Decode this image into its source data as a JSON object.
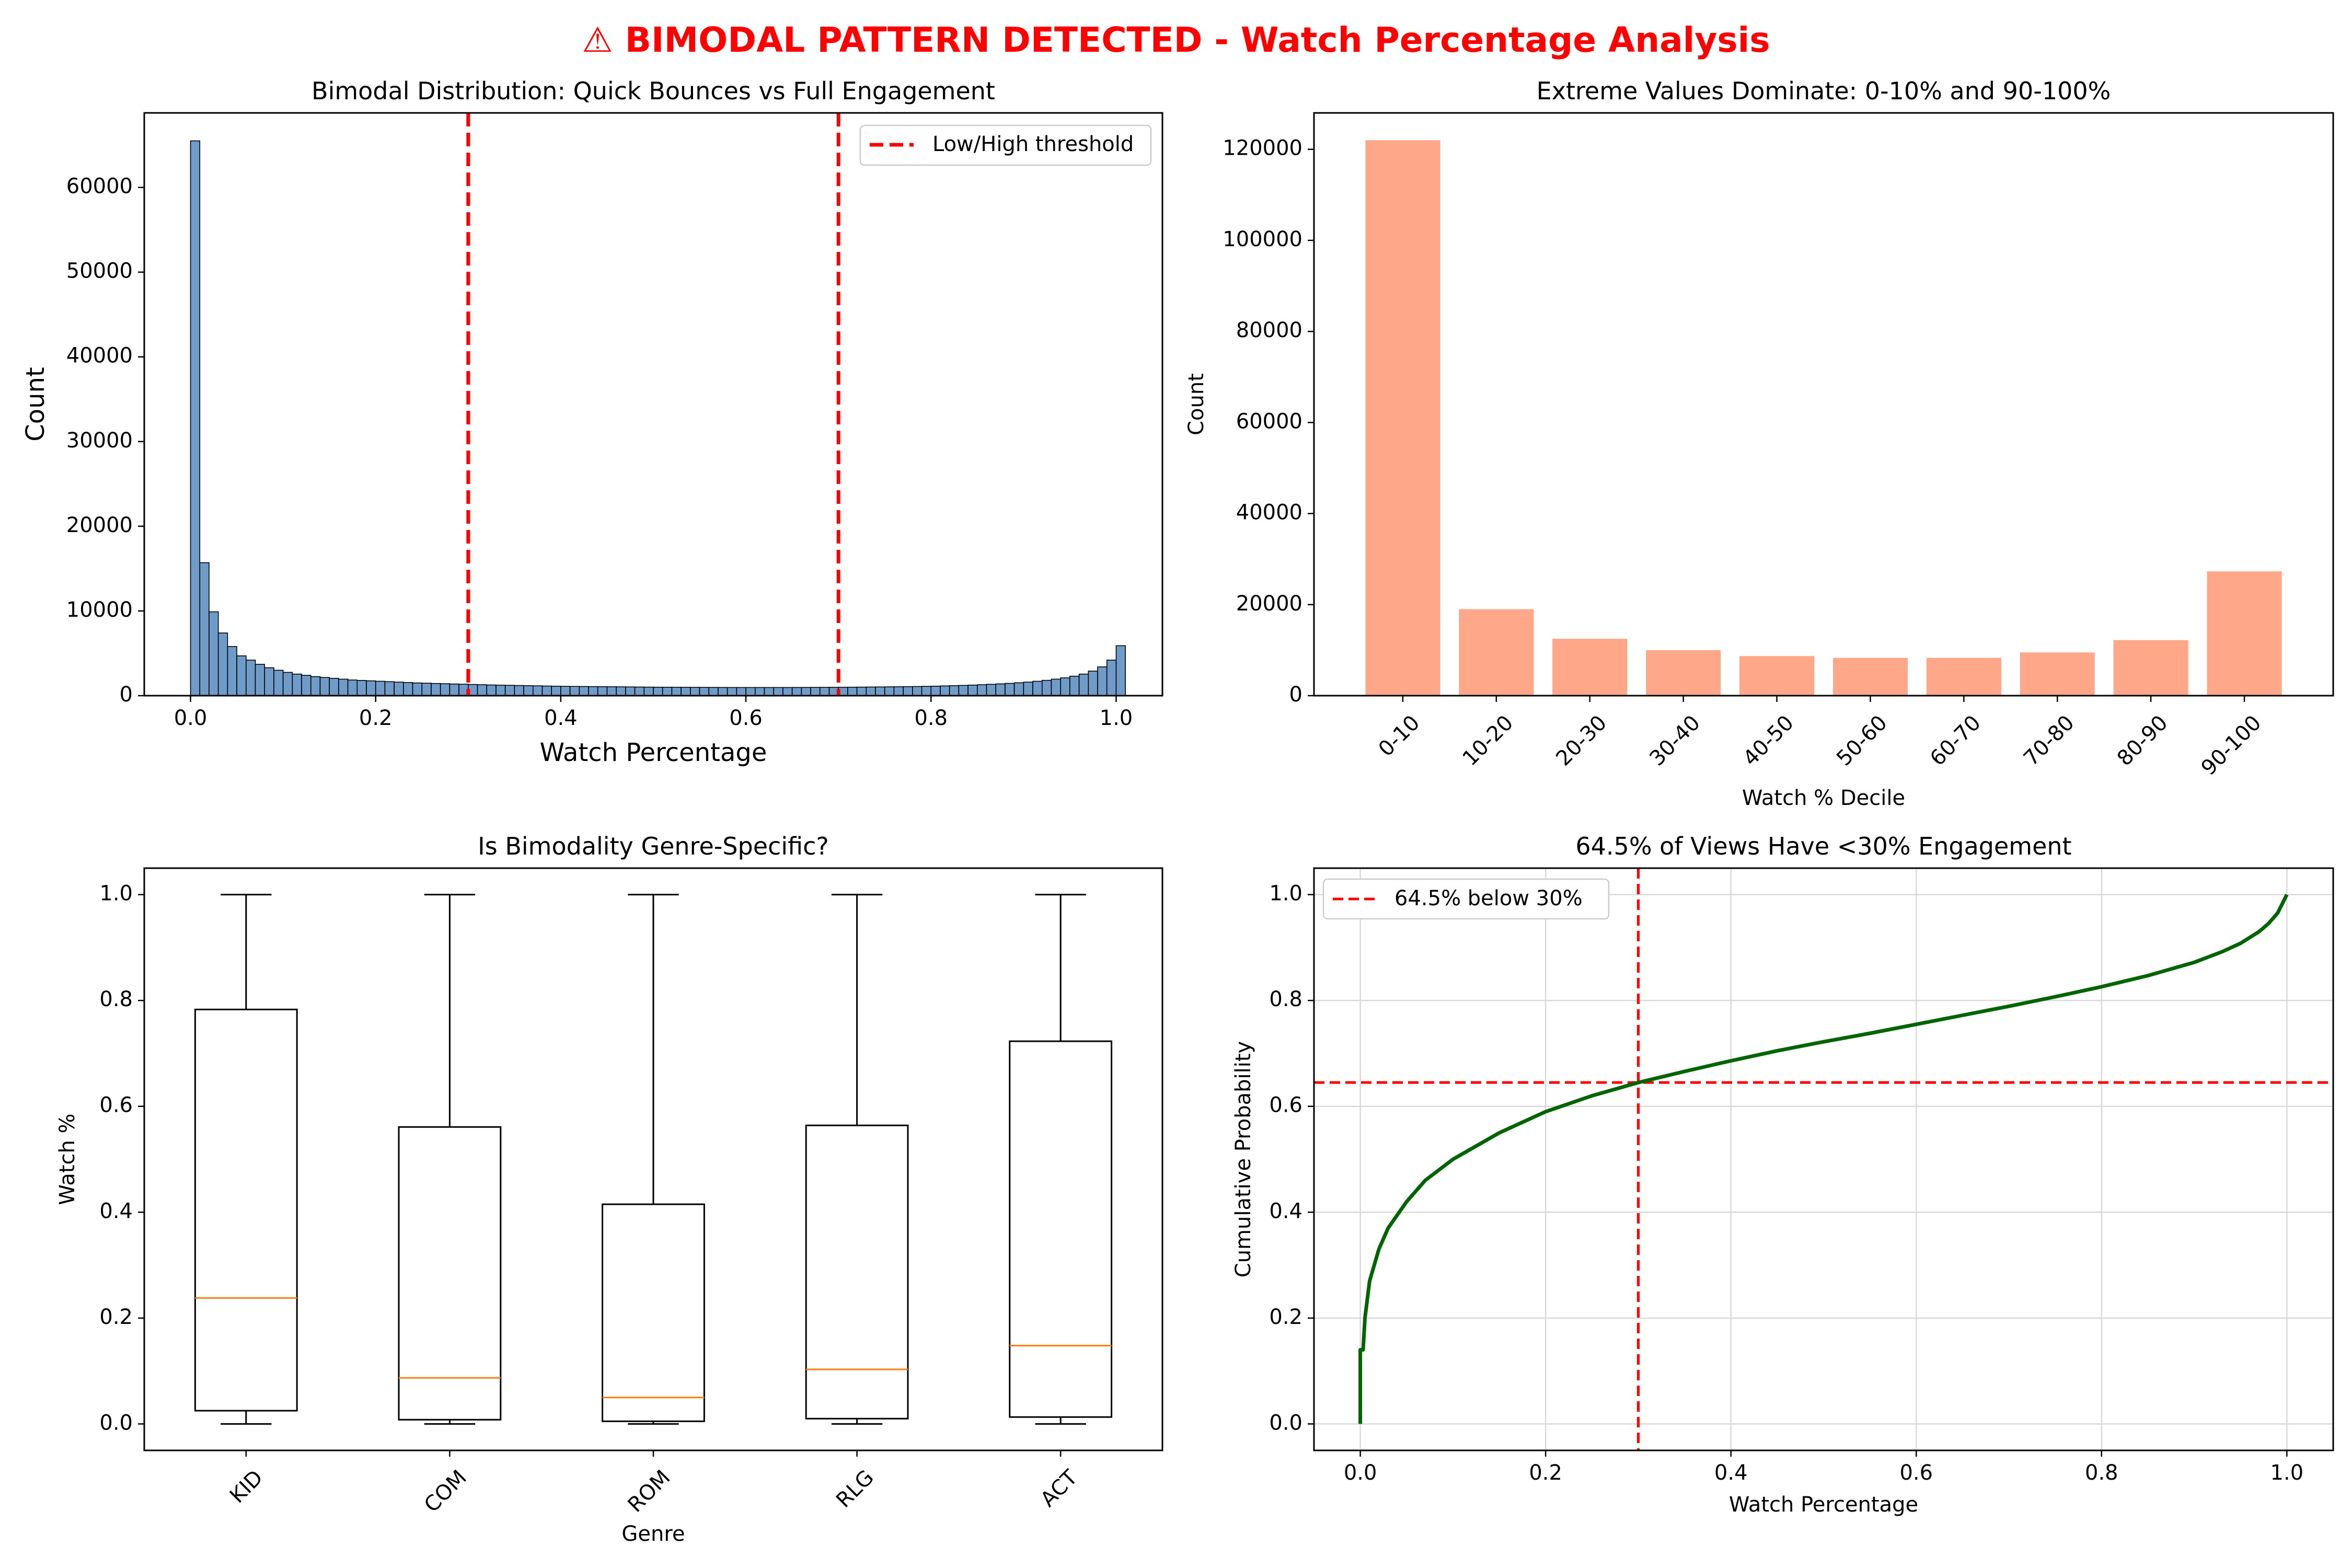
{
  "suptitle": "⚠ BIMODAL PATTERN DETECTED - Watch Percentage Analysis",
  "colors": {
    "hist_fill": "#6f9bc8",
    "bar_fill": "#fea889",
    "threshold": "#ff0000",
    "median": "#ff7f0e",
    "ecdf": "#006400",
    "grid": "#d9d9d9"
  },
  "chart_data": [
    {
      "type": "bar",
      "title": "Bimodal Distribution: Quick Bounces vs Full Engagement",
      "xlabel": "Watch Percentage",
      "ylabel": "Count",
      "xlim": [
        -0.05,
        1.05
      ],
      "ylim": [
        0,
        68800
      ],
      "xticks": [
        0.0,
        0.2,
        0.4,
        0.6,
        0.8,
        1.0
      ],
      "xtick_labels": [
        "0.0",
        "0.2",
        "0.4",
        "0.6",
        "0.8",
        "1.0"
      ],
      "yticks": [
        0,
        10000,
        20000,
        30000,
        40000,
        50000,
        60000
      ],
      "ytick_labels": [
        "0",
        "10000",
        "20000",
        "30000",
        "40000",
        "50000",
        "60000"
      ],
      "bin_width": 0.01,
      "bin_start": 0.0,
      "counts": [
        65500,
        15700,
        9900,
        7400,
        5800,
        4700,
        4200,
        3700,
        3300,
        3000,
        2750,
        2550,
        2400,
        2250,
        2150,
        2050,
        1950,
        1850,
        1800,
        1750,
        1700,
        1650,
        1600,
        1550,
        1500,
        1470,
        1440,
        1410,
        1380,
        1350,
        1320,
        1290,
        1260,
        1240,
        1220,
        1200,
        1180,
        1160,
        1140,
        1120,
        1100,
        1090,
        1080,
        1070,
        1060,
        1050,
        1040,
        1030,
        1020,
        1010,
        1000,
        995,
        990,
        985,
        980,
        975,
        970,
        965,
        960,
        960,
        960,
        960,
        960,
        960,
        960,
        965,
        970,
        975,
        980,
        985,
        990,
        1000,
        1010,
        1020,
        1030,
        1040,
        1050,
        1065,
        1080,
        1100,
        1120,
        1150,
        1180,
        1210,
        1250,
        1290,
        1340,
        1390,
        1450,
        1520,
        1600,
        1700,
        1810,
        1950,
        2100,
        2300,
        2550,
        2900,
        3400,
        4200,
        5900
      ],
      "thresholds": [
        0.3,
        0.7
      ],
      "legend": "Low/High threshold",
      "legend_position": "top-right"
    },
    {
      "type": "bar",
      "title": "Extreme Values Dominate: 0-10% and 90-100%",
      "xlabel": "Watch % Decile",
      "ylabel": "Count",
      "categories": [
        "0-10",
        "10-20",
        "20-30",
        "30-40",
        "40-50",
        "50-60",
        "60-70",
        "70-80",
        "80-90",
        "90-100"
      ],
      "values": [
        122000,
        19000,
        12500,
        10000,
        8700,
        8300,
        8300,
        9500,
        12200,
        27300
      ],
      "ylim": [
        0,
        128000
      ],
      "yticks": [
        0,
        20000,
        40000,
        60000,
        80000,
        100000,
        120000
      ],
      "ytick_labels": [
        "0",
        "20000",
        "40000",
        "60000",
        "80000",
        "100000",
        "120000"
      ]
    },
    {
      "type": "box",
      "title": "Is Bimodality Genre-Specific?",
      "xlabel": "Genre",
      "ylabel": "Watch %",
      "categories": [
        "KID",
        "COM",
        "ROM",
        "RLG",
        "ACT"
      ],
      "boxes": [
        {
          "whislo": 0.0,
          "q1": 0.025,
          "med": 0.238,
          "q3": 0.783,
          "whishi": 1.0
        },
        {
          "whislo": 0.0,
          "q1": 0.008,
          "med": 0.087,
          "q3": 0.561,
          "whishi": 1.0
        },
        {
          "whislo": 0.0,
          "q1": 0.005,
          "med": 0.05,
          "q3": 0.415,
          "whishi": 1.0
        },
        {
          "whislo": 0.0,
          "q1": 0.01,
          "med": 0.103,
          "q3": 0.564,
          "whishi": 1.0
        },
        {
          "whislo": 0.0,
          "q1": 0.013,
          "med": 0.148,
          "q3": 0.723,
          "whishi": 1.0
        }
      ],
      "ylim": [
        -0.05,
        1.05
      ],
      "yticks": [
        0.0,
        0.2,
        0.4,
        0.6,
        0.8,
        1.0
      ],
      "ytick_labels": [
        "0.0",
        "0.2",
        "0.4",
        "0.6",
        "0.8",
        "1.0"
      ]
    },
    {
      "type": "line",
      "title": "64.5% of Views Have <30% Engagement",
      "xlabel": "Watch Percentage",
      "ylabel": "Cumulative Probability",
      "x": [
        0,
        0,
        0.003,
        0.005,
        0.01,
        0.02,
        0.03,
        0.05,
        0.07,
        0.1,
        0.15,
        0.2,
        0.25,
        0.3,
        0.35,
        0.4,
        0.45,
        0.5,
        0.55,
        0.6,
        0.65,
        0.7,
        0.75,
        0.8,
        0.85,
        0.9,
        0.93,
        0.95,
        0.97,
        0.98,
        0.99,
        1.0
      ],
      "y": [
        0,
        0.14,
        0.14,
        0.2,
        0.27,
        0.33,
        0.37,
        0.42,
        0.46,
        0.5,
        0.55,
        0.59,
        0.62,
        0.645,
        0.666,
        0.686,
        0.705,
        0.722,
        0.738,
        0.755,
        0.772,
        0.789,
        0.807,
        0.826,
        0.847,
        0.872,
        0.892,
        0.908,
        0.93,
        0.945,
        0.965,
        1.0
      ],
      "xlim": [
        -0.05,
        1.05
      ],
      "ylim": [
        -0.05,
        1.05
      ],
      "xticks": [
        0.0,
        0.2,
        0.4,
        0.6,
        0.8,
        1.0
      ],
      "xtick_labels": [
        "0.0",
        "0.2",
        "0.4",
        "0.6",
        "0.8",
        "1.0"
      ],
      "yticks": [
        0.0,
        0.2,
        0.4,
        0.6,
        0.8,
        1.0
      ],
      "ytick_labels": [
        "0.0",
        "0.2",
        "0.4",
        "0.6",
        "0.8",
        "1.0"
      ],
      "ref_x": 0.3,
      "ref_y": 0.645,
      "grid": true,
      "legend": "64.5% below 30%",
      "legend_position": "top-left"
    }
  ]
}
